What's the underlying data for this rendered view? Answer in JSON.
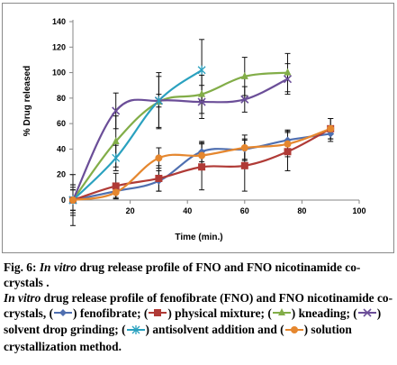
{
  "chart_data": {
    "type": "line",
    "title": "",
    "xlabel": "Time (min.)",
    "ylabel": "% Drug released",
    "xlim": [
      0,
      100
    ],
    "ylim": [
      0,
      140
    ],
    "xticks": [
      20,
      40,
      60,
      80,
      100
    ],
    "yticks": [
      0,
      20,
      40,
      60,
      80,
      100,
      120,
      140
    ],
    "grid": false,
    "series": [
      {
        "name": "fenofibrate",
        "color": "#4f6fb0",
        "marker": "diamond",
        "x": [
          0,
          15,
          30,
          45,
          60,
          75,
          90
        ],
        "y": [
          0,
          7,
          15,
          38,
          40,
          47,
          52
        ],
        "err": [
          12,
          5,
          8,
          8,
          8,
          8,
          6
        ]
      },
      {
        "name": "physical mixture",
        "color": "#b03a36",
        "marker": "square",
        "x": [
          0,
          15,
          30,
          45,
          60,
          75,
          90
        ],
        "y": [
          0,
          11,
          17,
          26,
          27,
          38,
          56
        ],
        "err": [
          20,
          10,
          10,
          18,
          20,
          15,
          8
        ]
      },
      {
        "name": "kneading",
        "color": "#82ad48",
        "marker": "triangle",
        "x": [
          0,
          15,
          30,
          45,
          60,
          75
        ],
        "y": [
          0,
          46,
          77,
          83,
          97,
          100
        ],
        "err": [
          12,
          20,
          20,
          15,
          15,
          15
        ]
      },
      {
        "name": "solvent drop grinding",
        "color": "#6b4e98",
        "marker": "x",
        "x": [
          0,
          15,
          30,
          45,
          60,
          75
        ],
        "y": [
          0,
          70,
          78,
          77,
          79,
          95
        ],
        "err": [
          10,
          14,
          22,
          13,
          10,
          12
        ]
      },
      {
        "name": "antisolvent addition",
        "color": "#2aa1bf",
        "marker": "asterisk",
        "x": [
          0,
          15,
          30,
          45
        ],
        "y": [
          0,
          33,
          78,
          102
        ],
        "err": [
          8,
          10,
          5,
          24
        ]
      },
      {
        "name": "solution crystallization method",
        "color": "#e5872f",
        "marker": "circle",
        "x": [
          0,
          15,
          30,
          45,
          60,
          75,
          90
        ],
        "y": [
          0,
          6,
          33,
          35,
          41,
          44,
          56
        ],
        "err": [
          8,
          5,
          8,
          10,
          10,
          10,
          8
        ]
      }
    ]
  },
  "caption": {
    "fig_label": "Fig. 6:",
    "fig_title_italic": "In vitro",
    "fig_title_rest": "drug release profile of FNO and FNO nicotinamide co-crystals .",
    "desc_italic": "In vitro",
    "desc_main": "drug release profile of fenofibrate (FNO) and FNO nicotinamide co-crystals,",
    "l1": "fenofibrate;",
    "l2": "physical mixture;",
    "l3": "kneading;",
    "l4": "solvent drop grinding;",
    "l5": "antisolvent addition and",
    "l6": "solution crystallization method."
  }
}
